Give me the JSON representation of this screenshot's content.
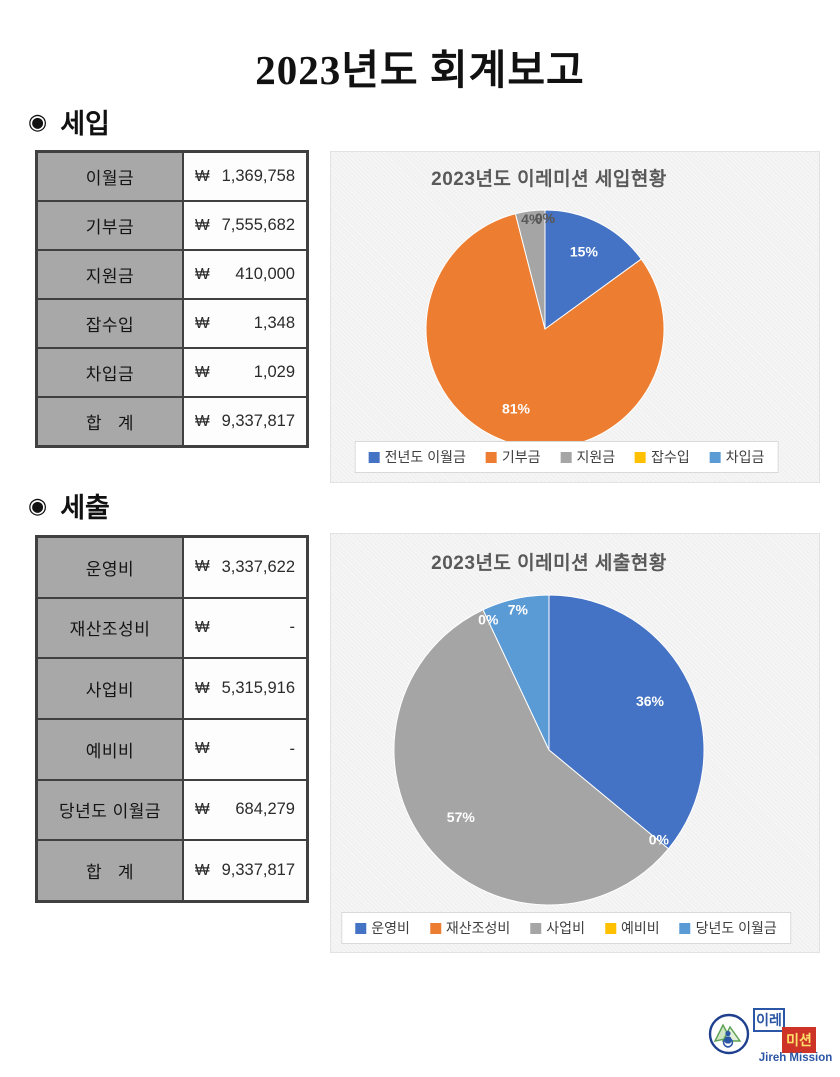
{
  "page": {
    "title": "2023년도 회계보고"
  },
  "sections": [
    {
      "bullet": "◉",
      "heading": "세입",
      "table": {
        "rows": [
          {
            "label": "이월금",
            "currency": "₩",
            "amount": "1,369,758"
          },
          {
            "label": "기부금",
            "currency": "₩",
            "amount": "7,555,682"
          },
          {
            "label": "지원금",
            "currency": "₩",
            "amount": "410,000"
          },
          {
            "label": "잡수입",
            "currency": "₩",
            "amount": "1,348"
          },
          {
            "label": "차입금",
            "currency": "₩",
            "amount": "1,029"
          },
          {
            "label": "합   계",
            "currency": "₩",
            "amount": "9,337,817"
          }
        ]
      }
    },
    {
      "bullet": "◉",
      "heading": "세출",
      "table": {
        "rows": [
          {
            "label": "운영비",
            "currency": "₩",
            "amount": "3,337,622"
          },
          {
            "label": "재산조성비",
            "currency": "₩",
            "amount": "-"
          },
          {
            "label": "사업비",
            "currency": "₩",
            "amount": "5,315,916"
          },
          {
            "label": "예비비",
            "currency": "₩",
            "amount": "-"
          },
          {
            "label": "당년도 이월금",
            "currency": "₩",
            "amount": "684,279"
          },
          {
            "label": "합   계",
            "currency": "₩",
            "amount": "9,337,817"
          }
        ]
      }
    }
  ],
  "chart_data": [
    {
      "type": "pie",
      "title": "2023년도 이레미션 세입현황",
      "labels": [
        "전년도 이월금",
        "기부금",
        "지원금",
        "잡수입",
        "차입금"
      ],
      "values": [
        15,
        81,
        4,
        0,
        0
      ],
      "slice_labels": [
        "15%",
        "81%",
        "4%",
        "0%",
        "0%"
      ],
      "colors": [
        "#4472c4",
        "#ed7d31",
        "#a5a5a5",
        "#ffc000",
        "#5b9bd5"
      ],
      "label_colors": [
        "#ffffff",
        "#ffffff",
        "#595959",
        "#595959",
        "#595959"
      ],
      "radius": 119,
      "legend_position": "bottom"
    },
    {
      "type": "pie",
      "title": "2023년도 이레미션 세출현황",
      "labels": [
        "운영비",
        "재산조성비",
        "사업비",
        "예비비",
        "당년도 이월금"
      ],
      "values": [
        36,
        0,
        57,
        0,
        7
      ],
      "slice_labels": [
        "36%",
        "0%",
        "57%",
        "0%",
        "7%"
      ],
      "colors": [
        "#4472c4",
        "#ed7d31",
        "#a5a5a5",
        "#ffc000",
        "#5b9bd5"
      ],
      "label_colors": [
        "#ffffff",
        "#ffffff",
        "#ffffff",
        "#ffffff",
        "#ffffff"
      ],
      "radius": 155,
      "legend_position": "bottom"
    }
  ],
  "logo": {
    "name_line1": "이레",
    "name_line2": "미션",
    "caption": "Jireh Mission"
  },
  "theme": {
    "table_header_bg": "#a8a8a8",
    "table_border": "#404040",
    "chart_card_bg": "#f1f1f1",
    "chart_card_border": "#e2e2e2",
    "chart_title_color": "#595959",
    "legend_text_color": "#404040",
    "logo_blue": "#2b55a5",
    "logo_red": "#cd3327",
    "logo_green": "#5aa053",
    "text_color": "#1f1f1f"
  }
}
